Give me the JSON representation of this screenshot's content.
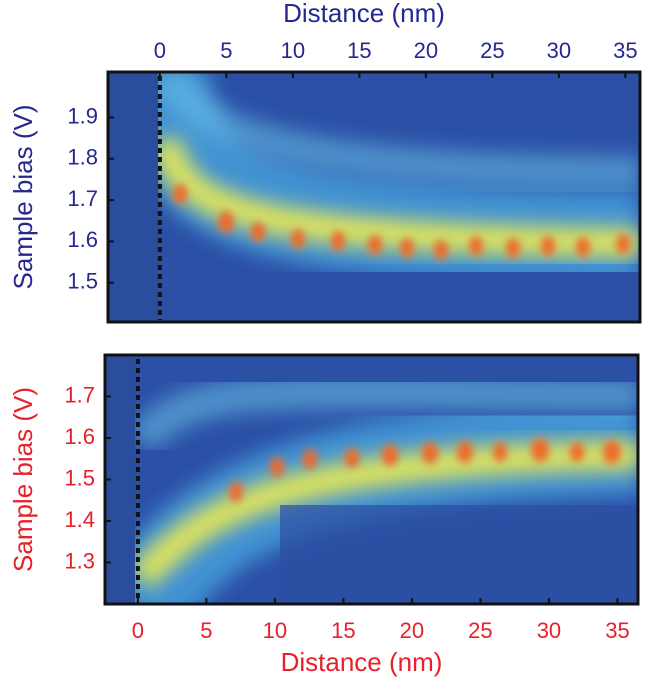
{
  "chart_data": [
    {
      "type": "heatmap",
      "xlabel": "Distance (nm)",
      "ylabel": "Sample bias (V)",
      "color": "#26288f",
      "xlim": [
        -3.9,
        36.1
      ],
      "ylim": [
        1.405,
        2.01
      ],
      "xticks": [
        0,
        5,
        10,
        15,
        20,
        25,
        30,
        35
      ],
      "yticks": [
        1.5,
        1.6,
        1.7,
        1.8,
        1.9
      ]
    },
    {
      "type": "heatmap",
      "xlabel": "Distance (nm)",
      "ylabel": "Sample bias (V)",
      "color": "#e8202a",
      "xlim": [
        -2.4,
        36.5
      ],
      "ylim": [
        1.2,
        1.8
      ],
      "xticks": [
        0,
        5,
        10,
        15,
        20,
        25,
        30,
        35
      ],
      "yticks": [
        1.3,
        1.4,
        1.5,
        1.6,
        1.7
      ]
    }
  ]
}
